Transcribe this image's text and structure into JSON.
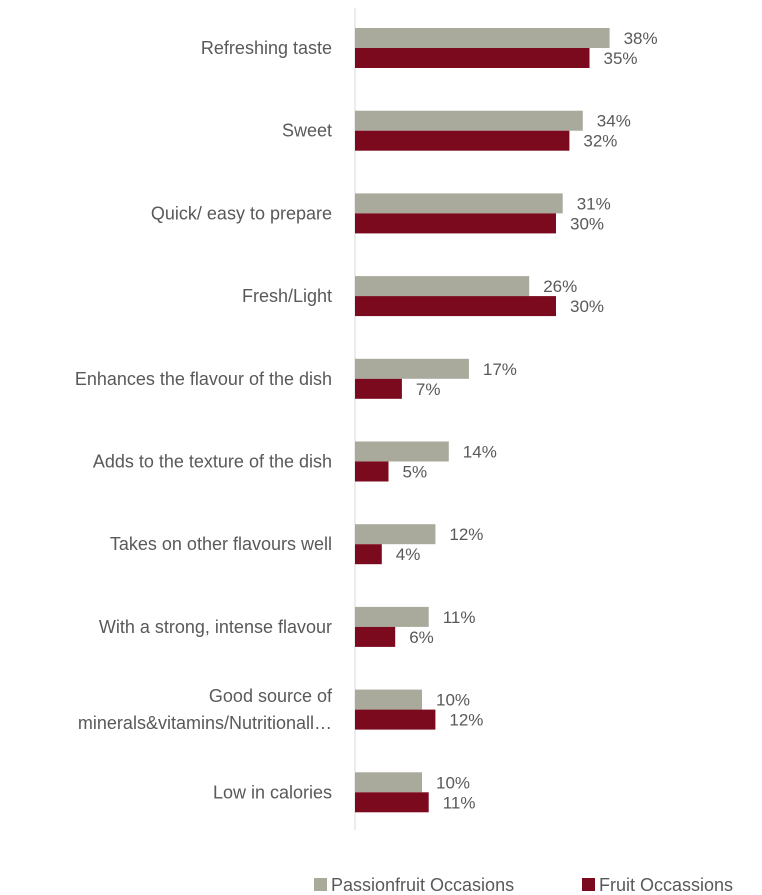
{
  "chart_data": {
    "type": "bar",
    "orientation": "horizontal",
    "categories": [
      [
        "Refreshing taste"
      ],
      [
        "Sweet"
      ],
      [
        "Quick/ easy to prepare"
      ],
      [
        "Fresh/Light"
      ],
      [
        "Enhances the flavour of the dish"
      ],
      [
        "Adds to the texture of the dish"
      ],
      [
        "Takes on other flavours well"
      ],
      [
        "With a strong, intense flavour"
      ],
      [
        "Good source of",
        "minerals&vitamins/Nutritionall…"
      ],
      [
        "Low in calories"
      ]
    ],
    "series": [
      {
        "name": "Passionfruit Occasions",
        "color": "#a9a99c",
        "values": [
          38,
          34,
          31,
          26,
          17,
          14,
          12,
          11,
          10,
          10
        ]
      },
      {
        "name": "Fruit Occassions",
        "color": "#7b0a1f",
        "values": [
          35,
          32,
          30,
          30,
          7,
          5,
          4,
          6,
          12,
          11
        ]
      }
    ],
    "value_suffix": "%",
    "xlim": [
      0,
      40
    ],
    "gridlines": false,
    "legend_position": "bottom-right"
  }
}
